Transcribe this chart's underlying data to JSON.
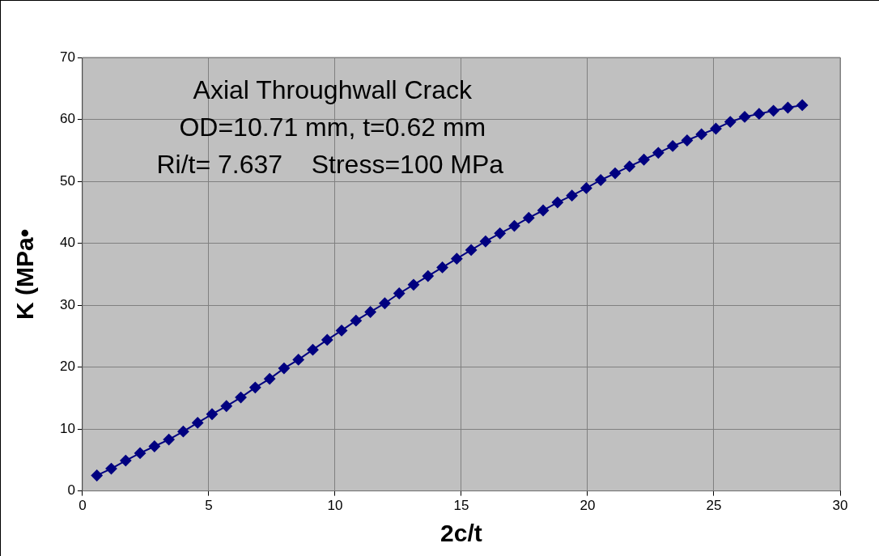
{
  "chart_data": {
    "type": "line",
    "xlabel": "2c/t",
    "ylabel": "K (MPa•",
    "annotations": [
      "Axial Throughwall Crack",
      "OD=10.71 mm, t=0.62 mm",
      "Ri/t= 7.637    Stress=100 MPa"
    ],
    "x": [
      0.57,
      1.14,
      1.71,
      2.28,
      2.85,
      3.42,
      3.99,
      4.56,
      5.13,
      5.7,
      6.27,
      6.84,
      7.41,
      7.98,
      8.55,
      9.12,
      9.69,
      10.26,
      10.83,
      11.4,
      11.97,
      12.54,
      13.11,
      13.68,
      14.25,
      14.82,
      15.39,
      15.96,
      16.53,
      17.1,
      17.67,
      18.24,
      18.81,
      19.38,
      19.95,
      20.52,
      21.09,
      21.66,
      22.23,
      22.8,
      23.37,
      23.94,
      24.51,
      25.08,
      25.65,
      26.22,
      26.79,
      27.36,
      27.93,
      28.5
    ],
    "series": [
      {
        "color": "#000080",
        "values": [
          2.5,
          3.6,
          4.9,
          6.1,
          7.2,
          8.3,
          9.6,
          11.0,
          12.4,
          13.7,
          15.1,
          16.7,
          18.1,
          19.8,
          21.2,
          22.8,
          24.4,
          25.9,
          27.5,
          28.9,
          30.3,
          31.9,
          33.3,
          34.7,
          36.1,
          37.5,
          38.9,
          40.3,
          41.6,
          42.8,
          44.1,
          45.3,
          46.6,
          47.7,
          48.9,
          50.2,
          51.3,
          52.4,
          53.5,
          54.6,
          55.7,
          56.6,
          57.6,
          58.5,
          59.6,
          60.4,
          60.9,
          61.4,
          61.9,
          62.3
        ]
      }
    ],
    "xlim": [
      0,
      30
    ],
    "xticks": [
      0,
      5,
      10,
      15,
      20,
      25,
      30
    ],
    "ylim": [
      0,
      70
    ],
    "yticks": [
      0,
      10,
      20,
      30,
      40,
      50,
      60,
      70
    ],
    "grid": true,
    "legend": false,
    "marker": "diamond",
    "line_style": "solid"
  }
}
